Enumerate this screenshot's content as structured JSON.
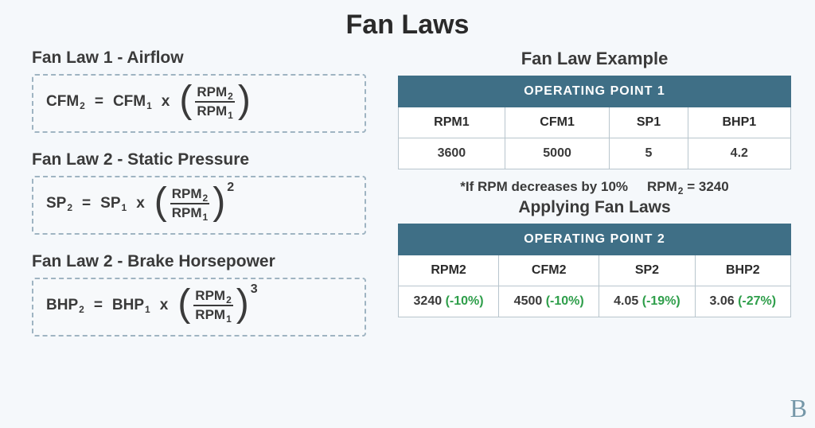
{
  "title": "Fan Laws",
  "colors": {
    "text": "#333333",
    "heading": "#2a2a2a",
    "table_header_bg": "#3f6f86",
    "table_header_text": "#ffffff",
    "table_border": "#b8c5cd",
    "dashed_border": "#9fb4c2",
    "pct_green": "#2e9e4a",
    "page_bg": "#f5f8fb"
  },
  "laws": [
    {
      "heading": "Fan Law 1  -  Airflow",
      "lhs_base": "CFM",
      "lhs_sub": "2",
      "rhs_base": "CFM",
      "rhs_sub": "1",
      "ratio_num_base": "RPM",
      "ratio_num_sub": "2",
      "ratio_den_base": "RPM",
      "ratio_den_sub": "1",
      "exponent": ""
    },
    {
      "heading": "Fan Law 2  -  Static Pressure",
      "lhs_base": "SP",
      "lhs_sub": "2",
      "rhs_base": "SP",
      "rhs_sub": "1",
      "ratio_num_base": "RPM",
      "ratio_num_sub": "2",
      "ratio_den_base": "RPM",
      "ratio_den_sub": "1",
      "exponent": "2"
    },
    {
      "heading": "Fan Law 2  -  Brake Horsepower",
      "lhs_base": "BHP",
      "lhs_sub": "2",
      "rhs_base": "BHP",
      "rhs_sub": "1",
      "ratio_num_base": "RPM",
      "ratio_num_sub": "2",
      "ratio_den_base": "RPM",
      "ratio_den_sub": "1",
      "exponent": "3"
    }
  ],
  "example_heading": "Fan Law Example",
  "table1": {
    "banner": "OPERATING POINT 1",
    "columns": [
      "RPM1",
      "CFM1",
      "SP1",
      "BHP1"
    ],
    "row": [
      "3600",
      "5000",
      "5",
      "4.2"
    ]
  },
  "note_left": "*If RPM decreases by 10%",
  "note_right_base": "RPM",
  "note_right_sub": "2",
  "note_right_eq": "= 3240",
  "applying_heading": "Applying Fan Laws",
  "table2": {
    "banner": "OPERATING POINT 2",
    "columns": [
      "RPM2",
      "CFM2",
      "SP2",
      "BHP2"
    ],
    "row_vals": [
      "3240",
      "4500",
      "4.05",
      "3.06"
    ],
    "row_pcts": [
      "(-10%)",
      "(-10%)",
      "(-19%)",
      "(-27%)"
    ]
  },
  "logo": "B"
}
